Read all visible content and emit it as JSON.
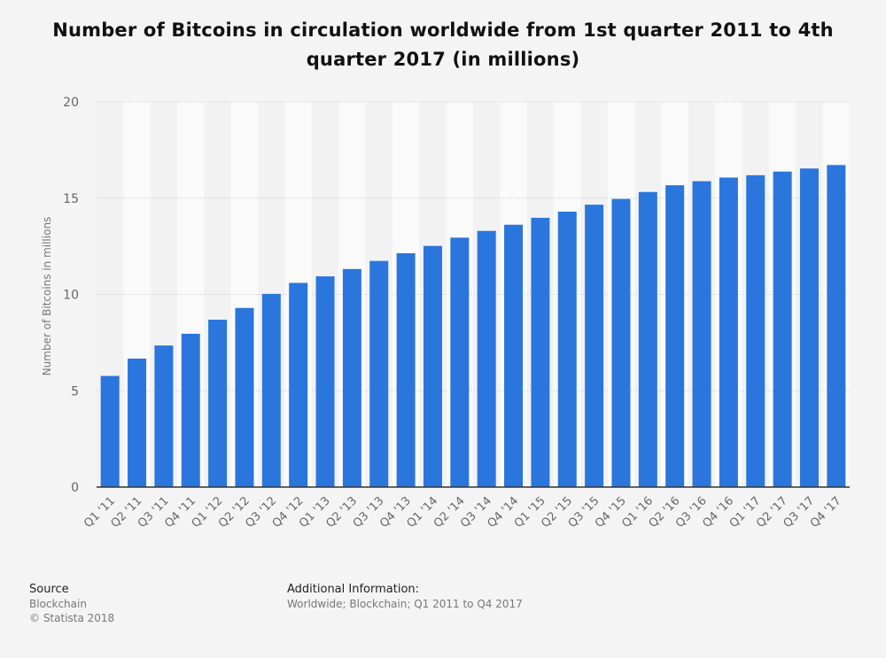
{
  "chart_data": {
    "type": "bar",
    "title": "Number of Bitcoins in circulation worldwide from 1st quarter 2011 to 4th quarter 2017 (in millions)",
    "ylabel": "Number of Bitcoins in millions",
    "xlabel": "",
    "ylim": [
      0,
      20
    ],
    "yticks": [
      0,
      5,
      10,
      15,
      20
    ],
    "grid": true,
    "bar_color": "#2a76dd",
    "categories": [
      "Q1 '11",
      "Q2 '11",
      "Q3 '11",
      "Q4 '11",
      "Q1 '12",
      "Q2 '12",
      "Q3 '12",
      "Q4 '12",
      "Q1 '13",
      "Q2 '13",
      "Q3 '13",
      "Q4 '13",
      "Q1 '14",
      "Q2 '14",
      "Q3 '14",
      "Q4 '14",
      "Q1 '15",
      "Q2 '15",
      "Q3 '15",
      "Q4 '15",
      "Q1 '16",
      "Q2 '16",
      "Q3 '16",
      "Q4 '16",
      "Q1 '17",
      "Q2 '17",
      "Q3 '17",
      "Q4 '17"
    ],
    "values": [
      5.77,
      6.67,
      7.35,
      7.96,
      8.69,
      9.3,
      10.03,
      10.6,
      10.94,
      11.32,
      11.74,
      12.14,
      12.52,
      12.95,
      13.3,
      13.62,
      13.98,
      14.3,
      14.66,
      14.96,
      15.32,
      15.67,
      15.88,
      16.07,
      16.19,
      16.38,
      16.54,
      16.72
    ]
  },
  "footer": {
    "source_heading": "Source",
    "source_name": "Blockchain",
    "copyright": "© Statista 2018",
    "additional_heading": "Additional Information:",
    "additional_text": "Worldwide; Blockchain; Q1 2011 to Q4 2017"
  }
}
